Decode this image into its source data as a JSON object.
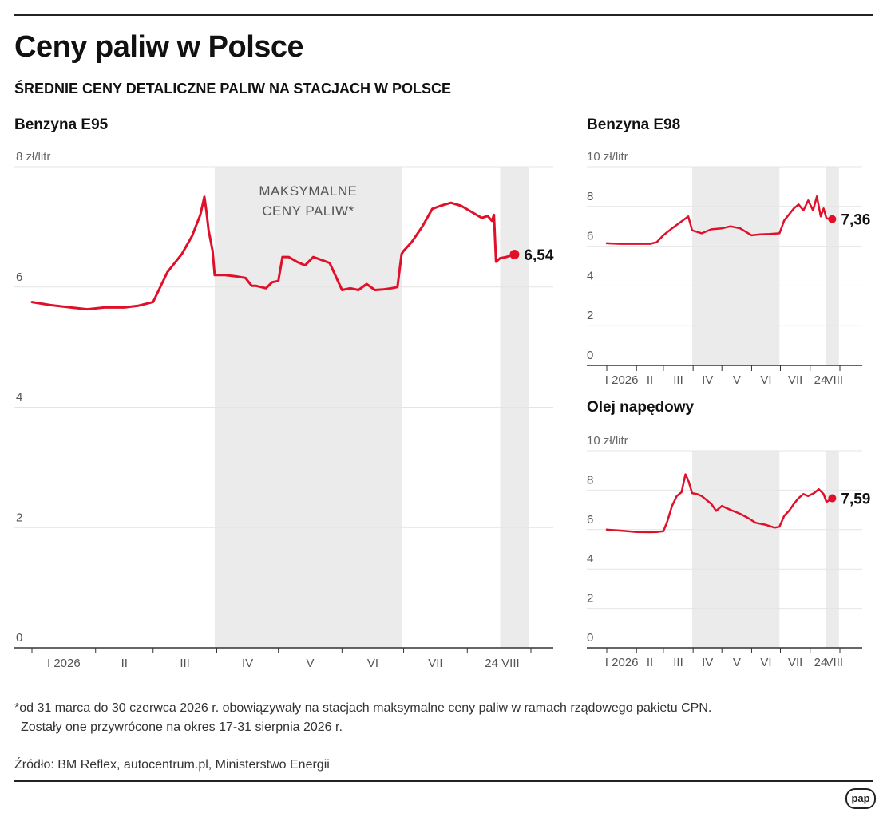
{
  "title": "Ceny paliw w Polsce",
  "subtitle": "ŚREDNIE CENY DETALICZNE PALIW NA STACJACH W POLSCE",
  "footnote": {
    "line1": "*od 31 marca do 30 czerwca 2026 r. obowiązywały na stacjach maksymalne ceny paliw w ramach rządowego pakietu CPN.",
    "line2": "Zostały one przywrócone na okres 17-31 sierpnia 2026 r."
  },
  "source": "Źródło: BM Reflex, autocentrum.pl, Ministerstwo Energii",
  "logo": "pap",
  "colors": {
    "line": "#e0102a",
    "shade": "#ebebeb",
    "grid": "#e4e4e4"
  },
  "chart_data": [
    {
      "id": "e95",
      "type": "line",
      "title": "Benzyna E95",
      "unit_label": "zł/litr",
      "y_ticks": [
        "8",
        "6",
        "4",
        "2",
        "0"
      ],
      "y_tick_values": [
        8,
        6,
        4,
        2,
        0
      ],
      "ylim": [
        0,
        8
      ],
      "x_labels": [
        "I 2026",
        "II",
        "III",
        "IV",
        "V",
        "VI",
        "VII",
        "24 VIII"
      ],
      "shaded_periods": [
        {
          "from": "2026-03-31",
          "to": "2026-06-30",
          "label": [
            "MAKSYMALNE",
            "CENY PALIW*"
          ]
        },
        {
          "from": "2026-08-17",
          "to": "2026-08-31"
        }
      ],
      "last_value_label": "6,54",
      "series": [
        {
          "x": [
            "2026-01-01",
            "2026-01-10",
            "2026-01-20",
            "2026-01-28",
            "2026-02-05",
            "2026-02-15",
            "2026-02-22",
            "2026-03-01",
            "2026-03-08",
            "2026-03-15",
            "2026-03-20",
            "2026-03-24",
            "2026-03-26",
            "2026-03-27",
            "2026-03-28",
            "2026-03-30",
            "2026-03-31",
            "2026-04-05",
            "2026-04-10",
            "2026-04-15",
            "2026-04-18",
            "2026-04-20",
            "2026-04-25",
            "2026-04-28",
            "2026-05-01",
            "2026-05-03",
            "2026-05-06",
            "2026-05-10",
            "2026-05-14",
            "2026-05-18",
            "2026-05-22",
            "2026-05-26",
            "2026-06-01",
            "2026-06-05",
            "2026-06-09",
            "2026-06-13",
            "2026-06-17",
            "2026-06-21",
            "2026-06-25",
            "2026-06-28",
            "2026-06-30",
            "2026-07-01",
            "2026-07-05",
            "2026-07-10",
            "2026-07-15",
            "2026-07-19",
            "2026-07-24",
            "2026-07-29",
            "2026-08-03",
            "2026-08-08",
            "2026-08-11",
            "2026-08-13",
            "2026-08-14",
            "2026-08-15",
            "2026-08-17",
            "2026-08-20",
            "2026-08-24"
          ],
          "y": [
            5.75,
            5.7,
            5.66,
            5.63,
            5.66,
            5.66,
            5.69,
            5.75,
            6.25,
            6.55,
            6.85,
            7.2,
            7.5,
            7.25,
            6.95,
            6.6,
            6.2,
            6.2,
            6.18,
            6.15,
            6.02,
            6.02,
            5.98,
            6.08,
            6.1,
            6.5,
            6.5,
            6.42,
            6.36,
            6.5,
            6.45,
            6.4,
            5.95,
            5.98,
            5.95,
            6.05,
            5.95,
            5.96,
            5.98,
            6.0,
            6.55,
            6.6,
            6.75,
            7.0,
            7.3,
            7.35,
            7.4,
            7.35,
            7.25,
            7.15,
            7.18,
            7.1,
            7.2,
            6.42,
            6.48,
            6.5,
            6.54
          ]
        }
      ]
    },
    {
      "id": "e98",
      "type": "line",
      "title": "Benzyna E98",
      "unit_label": "zł/litr",
      "y_ticks": [
        "10",
        "8",
        "6",
        "4",
        "2",
        "0"
      ],
      "y_tick_values": [
        10,
        8,
        6,
        4,
        2,
        0
      ],
      "ylim": [
        0,
        10
      ],
      "x_labels": [
        "I 2026",
        "II",
        "III",
        "IV",
        "V",
        "VI",
        "VII",
        "24",
        "VIII"
      ],
      "shaded_periods": [
        {
          "from": "2026-03-31",
          "to": "2026-06-30"
        },
        {
          "from": "2026-08-17",
          "to": "2026-08-31"
        }
      ],
      "last_value_label": "7,36",
      "series": [
        {
          "x": [
            "2026-01-01",
            "2026-01-15",
            "2026-02-01",
            "2026-02-15",
            "2026-02-22",
            "2026-03-01",
            "2026-03-10",
            "2026-03-20",
            "2026-03-27",
            "2026-03-31",
            "2026-04-10",
            "2026-04-20",
            "2026-05-01",
            "2026-05-10",
            "2026-05-20",
            "2026-06-01",
            "2026-06-10",
            "2026-06-20",
            "2026-06-30",
            "2026-07-05",
            "2026-07-10",
            "2026-07-15",
            "2026-07-20",
            "2026-07-25",
            "2026-07-30",
            "2026-08-04",
            "2026-08-08",
            "2026-08-12",
            "2026-08-15",
            "2026-08-18",
            "2026-08-24"
          ],
          "y": [
            6.15,
            6.12,
            6.12,
            6.12,
            6.2,
            6.55,
            6.9,
            7.25,
            7.5,
            6.8,
            6.65,
            6.85,
            6.9,
            7.0,
            6.9,
            6.55,
            6.6,
            6.62,
            6.65,
            7.3,
            7.6,
            7.9,
            8.1,
            7.8,
            8.3,
            7.8,
            8.5,
            7.5,
            7.9,
            7.4,
            7.36
          ]
        }
      ]
    },
    {
      "id": "on",
      "type": "line",
      "title": "Olej napędowy",
      "unit_label": "zł/litr",
      "y_ticks": [
        "10",
        "8",
        "6",
        "4",
        "2",
        "0"
      ],
      "y_tick_values": [
        10,
        8,
        6,
        4,
        2,
        0
      ],
      "ylim": [
        0,
        10
      ],
      "x_labels": [
        "I 2026",
        "II",
        "III",
        "IV",
        "V",
        "VI",
        "VII",
        "24",
        "VIII"
      ],
      "shaded_periods": [
        {
          "from": "2026-03-31",
          "to": "2026-06-30"
        },
        {
          "from": "2026-08-17",
          "to": "2026-08-31"
        }
      ],
      "last_value_label": "7,59",
      "series": [
        {
          "x": [
            "2026-01-01",
            "2026-01-15",
            "2026-02-01",
            "2026-02-15",
            "2026-02-22",
            "2026-03-01",
            "2026-03-05",
            "2026-03-10",
            "2026-03-15",
            "2026-03-20",
            "2026-03-24",
            "2026-03-27",
            "2026-03-31",
            "2026-04-05",
            "2026-04-10",
            "2026-04-15",
            "2026-04-20",
            "2026-04-25",
            "2026-05-01",
            "2026-05-10",
            "2026-05-20",
            "2026-05-28",
            "2026-06-05",
            "2026-06-15",
            "2026-06-25",
            "2026-06-30",
            "2026-07-05",
            "2026-07-10",
            "2026-07-15",
            "2026-07-20",
            "2026-07-25",
            "2026-07-30",
            "2026-08-05",
            "2026-08-10",
            "2026-08-15",
            "2026-08-18",
            "2026-08-24"
          ],
          "y": [
            6.0,
            5.95,
            5.88,
            5.87,
            5.88,
            5.92,
            6.4,
            7.2,
            7.7,
            7.9,
            8.8,
            8.5,
            7.85,
            7.8,
            7.7,
            7.5,
            7.3,
            6.95,
            7.2,
            7.0,
            6.8,
            6.6,
            6.35,
            6.25,
            6.1,
            6.15,
            6.7,
            6.95,
            7.3,
            7.6,
            7.8,
            7.7,
            7.85,
            8.05,
            7.8,
            7.4,
            7.59
          ]
        }
      ]
    }
  ]
}
